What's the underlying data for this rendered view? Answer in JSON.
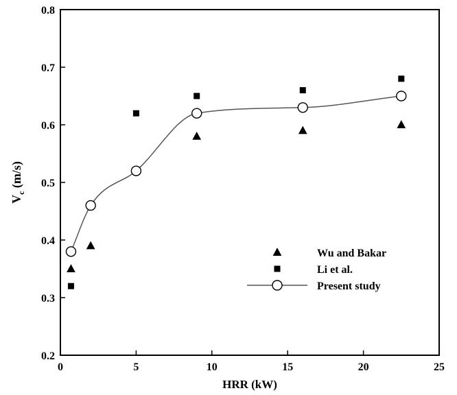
{
  "chart_data": {
    "type": "scatter",
    "xlabel": "HRR (kW)",
    "ylabel_main": "V",
    "ylabel_sub": "c",
    "ylabel_unit": " (m/s)",
    "xlim": [
      0,
      25
    ],
    "ylim": [
      0.2,
      0.8
    ],
    "xticks": [
      0,
      5,
      10,
      15,
      20,
      25
    ],
    "yticks": [
      0.2,
      0.3,
      0.4,
      0.5,
      0.6,
      0.7,
      0.8
    ],
    "grid": false,
    "legend_position": "lower-right",
    "series": [
      {
        "name": "Wu and Bakar",
        "marker": "filled-triangle",
        "x": [
          0.7,
          2.0,
          5.0,
          9.0,
          16.0,
          22.5
        ],
        "y": [
          0.35,
          0.39,
          0.52,
          0.58,
          0.59,
          0.6
        ]
      },
      {
        "name": "Li et al.",
        "marker": "filled-square",
        "x": [
          0.7,
          2.0,
          5.0,
          9.0,
          16.0,
          22.5
        ],
        "y": [
          0.32,
          0.46,
          0.62,
          0.65,
          0.66,
          0.68
        ]
      },
      {
        "name": "Present study",
        "marker": "open-circle-with-smooth-line",
        "x": [
          0.7,
          2.0,
          5.0,
          9.0,
          16.0,
          22.5
        ],
        "y": [
          0.38,
          0.46,
          0.52,
          0.62,
          0.63,
          0.65
        ]
      }
    ]
  }
}
